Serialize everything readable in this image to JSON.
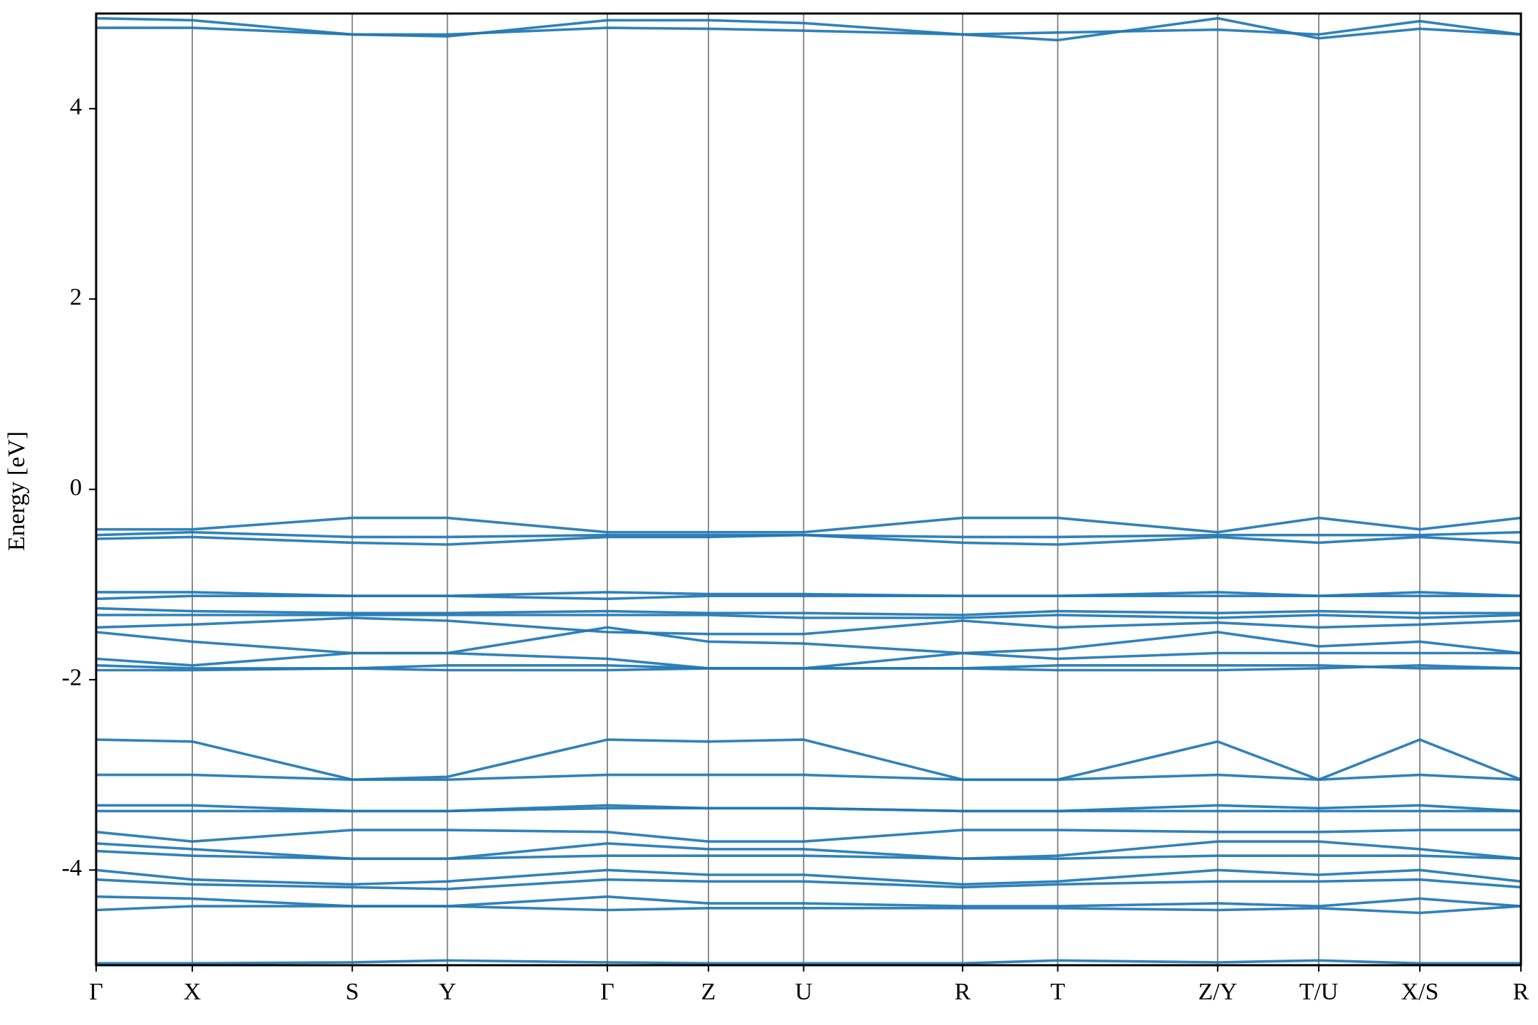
{
  "chart_data": {
    "type": "line",
    "ylabel": "Energy [eV]",
    "color": "#1f77b4",
    "grid": "x",
    "xlim": [
      0,
      14.52
    ],
    "ylim": [
      -5,
      5
    ],
    "yticks": [
      -4,
      -2,
      0,
      2,
      4
    ],
    "xticks": [
      {
        "value": 0,
        "label": "Γ"
      },
      {
        "value": 0.98,
        "label": "X"
      },
      {
        "value": 2.61,
        "label": "S"
      },
      {
        "value": 3.58,
        "label": "Y"
      },
      {
        "value": 5.21,
        "label": "Γ"
      },
      {
        "value": 6.24,
        "label": "Z"
      },
      {
        "value": 7.21,
        "label": "U"
      },
      {
        "value": 8.83,
        "label": "R"
      },
      {
        "value": 9.8,
        "label": "T"
      },
      {
        "value": 11.43,
        "label": "Z/Y"
      },
      {
        "value": 12.46,
        "label": "T/U"
      },
      {
        "value": 13.49,
        "label": "X/S"
      },
      {
        "value": 14.52,
        "label": "R"
      }
    ],
    "x": [
      0,
      0.98,
      2.61,
      3.58,
      5.21,
      6.24,
      7.21,
      8.83,
      9.8,
      11.43,
      12.46,
      13.49,
      14.52
    ],
    "series": [
      {
        "values": [
          4.85,
          4.85,
          4.78,
          4.78,
          4.85,
          4.84,
          4.82,
          4.78,
          4.8,
          4.83,
          4.78,
          4.92,
          4.78
        ]
      },
      {
        "values": [
          4.95,
          4.93,
          4.78,
          4.76,
          4.93,
          4.93,
          4.9,
          4.78,
          4.72,
          4.95,
          4.74,
          4.84,
          4.78
        ]
      },
      {
        "values": [
          -0.42,
          -0.42,
          -0.3,
          -0.3,
          -0.45,
          -0.45,
          -0.45,
          -0.3,
          -0.3,
          -0.45,
          -0.3,
          -0.42,
          -0.3
        ]
      },
      {
        "values": [
          -0.48,
          -0.45,
          -0.5,
          -0.5,
          -0.48,
          -0.48,
          -0.48,
          -0.5,
          -0.5,
          -0.48,
          -0.48,
          -0.48,
          -0.45
        ]
      },
      {
        "values": [
          -0.52,
          -0.5,
          -0.56,
          -0.58,
          -0.5,
          -0.5,
          -0.48,
          -0.56,
          -0.58,
          -0.5,
          -0.56,
          -0.5,
          -0.56
        ]
      },
      {
        "values": [
          -1.08,
          -1.08,
          -1.12,
          -1.12,
          -1.08,
          -1.1,
          -1.1,
          -1.12,
          -1.12,
          -1.08,
          -1.12,
          -1.08,
          -1.12
        ]
      },
      {
        "values": [
          -1.15,
          -1.12,
          -1.12,
          -1.12,
          -1.15,
          -1.12,
          -1.12,
          -1.12,
          -1.12,
          -1.12,
          -1.12,
          -1.12,
          -1.12
        ]
      },
      {
        "values": [
          -1.25,
          -1.28,
          -1.3,
          -1.3,
          -1.28,
          -1.3,
          -1.3,
          -1.32,
          -1.28,
          -1.3,
          -1.28,
          -1.3,
          -1.3
        ]
      },
      {
        "values": [
          -1.32,
          -1.32,
          -1.32,
          -1.32,
          -1.32,
          -1.32,
          -1.35,
          -1.35,
          -1.32,
          -1.35,
          -1.32,
          -1.35,
          -1.32
        ]
      },
      {
        "values": [
          -1.45,
          -1.42,
          -1.35,
          -1.38,
          -1.5,
          -1.52,
          -1.52,
          -1.38,
          -1.45,
          -1.4,
          -1.45,
          -1.42,
          -1.38
        ]
      },
      {
        "values": [
          -1.5,
          -1.6,
          -1.72,
          -1.72,
          -1.45,
          -1.6,
          -1.62,
          -1.72,
          -1.68,
          -1.5,
          -1.65,
          -1.6,
          -1.72
        ]
      },
      {
        "values": [
          -1.78,
          -1.85,
          -1.72,
          -1.72,
          -1.78,
          -1.88,
          -1.88,
          -1.72,
          -1.78,
          -1.72,
          -1.72,
          -1.72,
          -1.72
        ]
      },
      {
        "values": [
          -1.85,
          -1.88,
          -1.88,
          -1.85,
          -1.85,
          -1.88,
          -1.88,
          -1.88,
          -1.85,
          -1.85,
          -1.85,
          -1.88,
          -1.88
        ]
      },
      {
        "values": [
          -1.9,
          -1.9,
          -1.88,
          -1.9,
          -1.9,
          -1.88,
          -1.88,
          -1.88,
          -1.9,
          -1.9,
          -1.88,
          -1.85,
          -1.88
        ]
      },
      {
        "values": [
          -2.63,
          -2.65,
          -3.05,
          -3.02,
          -2.63,
          -2.65,
          -2.63,
          -3.05,
          -3.05,
          -2.65,
          -3.05,
          -2.63,
          -3.05
        ]
      },
      {
        "values": [
          -3.0,
          -3.0,
          -3.05,
          -3.05,
          -3.0,
          -3.0,
          -3.0,
          -3.05,
          -3.05,
          -3.0,
          -3.05,
          -3.0,
          -3.05
        ]
      },
      {
        "values": [
          -3.32,
          -3.32,
          -3.38,
          -3.38,
          -3.32,
          -3.35,
          -3.35,
          -3.38,
          -3.38,
          -3.32,
          -3.35,
          -3.32,
          -3.38
        ]
      },
      {
        "values": [
          -3.38,
          -3.38,
          -3.38,
          -3.38,
          -3.35,
          -3.35,
          -3.35,
          -3.38,
          -3.38,
          -3.38,
          -3.38,
          -3.38,
          -3.38
        ]
      },
      {
        "values": [
          -3.6,
          -3.7,
          -3.58,
          -3.58,
          -3.6,
          -3.7,
          -3.7,
          -3.58,
          -3.58,
          -3.6,
          -3.6,
          -3.58,
          -3.58
        ]
      },
      {
        "values": [
          -3.72,
          -3.78,
          -3.88,
          -3.88,
          -3.72,
          -3.78,
          -3.78,
          -3.88,
          -3.85,
          -3.7,
          -3.7,
          -3.78,
          -3.88
        ]
      },
      {
        "values": [
          -3.8,
          -3.85,
          -3.88,
          -3.88,
          -3.85,
          -3.85,
          -3.85,
          -3.88,
          -3.88,
          -3.85,
          -3.85,
          -3.85,
          -3.88
        ]
      },
      {
        "values": [
          -4.0,
          -4.1,
          -4.15,
          -4.12,
          -4.0,
          -4.05,
          -4.05,
          -4.15,
          -4.12,
          -4.0,
          -4.05,
          -4.0,
          -4.12
        ]
      },
      {
        "values": [
          -4.1,
          -4.15,
          -4.18,
          -4.2,
          -4.1,
          -4.12,
          -4.12,
          -4.18,
          -4.15,
          -4.12,
          -4.12,
          -4.1,
          -4.18
        ]
      },
      {
        "values": [
          -4.28,
          -4.3,
          -4.38,
          -4.38,
          -4.28,
          -4.35,
          -4.35,
          -4.38,
          -4.38,
          -4.35,
          -4.38,
          -4.3,
          -4.38
        ]
      },
      {
        "values": [
          -4.42,
          -4.38,
          -4.38,
          -4.38,
          -4.42,
          -4.4,
          -4.4,
          -4.4,
          -4.4,
          -4.42,
          -4.4,
          -4.45,
          -4.38
        ]
      },
      {
        "values": [
          -4.98,
          -4.98,
          -4.97,
          -4.95,
          -4.97,
          -4.98,
          -4.98,
          -4.98,
          -4.95,
          -4.97,
          -4.95,
          -4.98,
          -4.98
        ]
      }
    ]
  }
}
